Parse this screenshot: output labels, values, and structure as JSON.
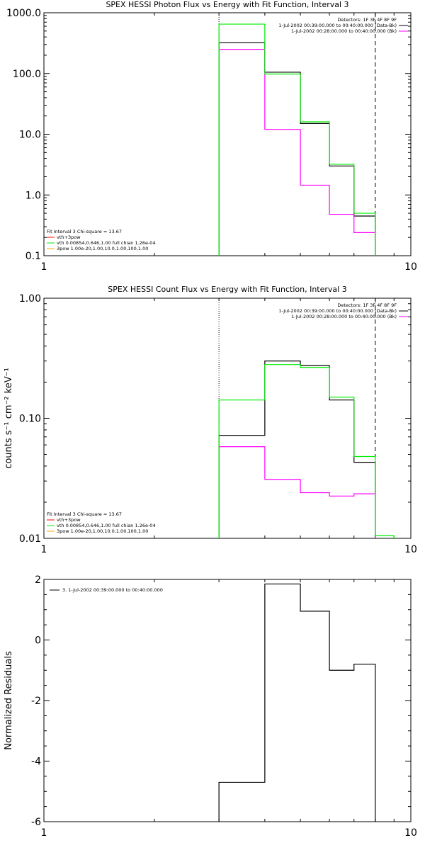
{
  "colors": {
    "data": "#000000",
    "background": "#ff00ff",
    "model": "#00ee00",
    "component_red": "#ff0000",
    "component_yellow": "#ffaa00",
    "fit_lines": "#000000"
  },
  "chart_data": [
    {
      "type": "line",
      "panel": "photon",
      "title": "SPEX HESSI Photon Flux vs Energy with Fit Function, Interval 3",
      "xlabel": "",
      "ylabel": "",
      "x_scale": "log",
      "y_scale": "log",
      "xlim": [
        1,
        10
      ],
      "ylim": [
        0.1,
        1000
      ],
      "x_tick_labels": [
        "1",
        "10"
      ],
      "y_tick_labels": [
        "0.1",
        "1.0",
        "10.0",
        "100.0",
        "1000.0"
      ],
      "y_ticks": [
        0.1,
        1,
        10,
        100,
        1000
      ],
      "fit_range_lines": [
        3.0,
        8.0
      ],
      "legend_top": [
        "Detectors: 1F 3F 4F 8F 9F",
        "1-Jul-2002 00:39:00.000 to 00:40:00.000 (Data-Bk)",
        "1-Jul-2002 00:28:00.000 to 00:40:00.000 (Bk)"
      ],
      "legend_bottom": [
        "Fit Interval 3   Chi-square = 13.67",
        "vth+3pow",
        "vth 0.00854,0.646,1.00  full chian 1.26e-04",
        "3pow 1.00e-20,1.00,10.0,1.00,100,1.00"
      ],
      "edges": [
        3.0,
        4.0,
        5.0,
        6.0,
        7.0,
        8.0
      ],
      "series": [
        {
          "name": "Data-Bk",
          "color_key": "data",
          "values": [
            320,
            105,
            15,
            3.0,
            0.45
          ]
        },
        {
          "name": "Bk",
          "color_key": "background",
          "values": [
            250,
            12,
            1.45,
            0.48,
            0.24
          ]
        },
        {
          "name": "vth+3pow",
          "color_key": "model",
          "values": [
            650,
            98,
            16,
            3.2,
            0.5
          ]
        }
      ]
    },
    {
      "type": "line",
      "panel": "count",
      "title": "SPEX HESSI Count Flux vs Energy with Fit Function, Interval 3",
      "xlabel": "",
      "ylabel": "counts s⁻¹ cm⁻² keV⁻¹",
      "x_scale": "log",
      "y_scale": "log",
      "xlim": [
        1,
        10
      ],
      "ylim": [
        0.01,
        1.0
      ],
      "x_tick_labels": [
        "1",
        "10"
      ],
      "y_tick_labels": [
        "0.01",
        "0.10",
        "1.00"
      ],
      "y_ticks": [
        0.01,
        0.1,
        1
      ],
      "fit_range_lines": [
        3.0,
        8.0
      ],
      "legend_top": [
        "Detectors: 1F 3F 4F 8F 9F",
        "1-Jul-2002 00:39:00.000 to 00:40:00.000 (Data-Bk)",
        "1-Jul-2002 00:28:00.000 to 00:40:00.000 (Bk)"
      ],
      "legend_bottom": [
        "Fit Interval 3   Chi-square = 13.67",
        "vth+3pow",
        "vth 0.00854,0.646,1.00  full chian 1.26e-04",
        "3pow 1.00e-20,1.00,10.0,1.00,100,1.00"
      ],
      "edges": [
        3.0,
        4.0,
        5.0,
        6.0,
        7.0,
        8.0,
        9.0
      ],
      "series": [
        {
          "name": "Data-Bk",
          "color_key": "data",
          "values": [
            0.072,
            0.3,
            0.275,
            0.142,
            0.043,
            null
          ]
        },
        {
          "name": "Bk",
          "color_key": "background",
          "values": [
            0.058,
            0.031,
            0.024,
            0.0225,
            0.0235,
            null
          ]
        },
        {
          "name": "vth+3pow",
          "color_key": "model",
          "values": [
            0.142,
            0.28,
            0.265,
            0.15,
            0.048,
            0.0105
          ]
        }
      ]
    },
    {
      "type": "line",
      "panel": "residuals",
      "title": "",
      "xlabel": "",
      "ylabel": "Normalized Residuals",
      "x_scale": "log",
      "y_scale": "linear",
      "xlim": [
        1,
        10
      ],
      "ylim": [
        -6,
        2
      ],
      "x_tick_labels": [
        "1",
        "10"
      ],
      "y_tick_labels": [
        "-6",
        "-4",
        "-2",
        "0",
        "2"
      ],
      "y_ticks": [
        -6,
        -4,
        -2,
        0,
        2
      ],
      "legend_top": [
        "3.  1-Jul-2002 00:39:00.000 to 00:40:00.000"
      ],
      "edges": [
        3.0,
        4.0,
        5.0,
        6.0,
        7.0,
        8.0
      ],
      "series": [
        {
          "name": "3.  1-Jul-2002 00:39:00.000 to 00:40:00.000",
          "color_key": "data",
          "values": [
            -4.7,
            1.85,
            0.95,
            -1.0,
            -0.8
          ]
        }
      ]
    }
  ]
}
